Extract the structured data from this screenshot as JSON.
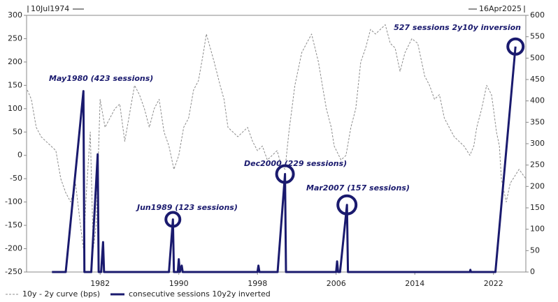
{
  "chart_data": {
    "type": "line",
    "start_label": "10Jul1974",
    "end_label": "16Apr2025",
    "xlim": [
      1974.52,
      2025.29
    ],
    "xticks": [
      1982,
      1990,
      1998,
      2006,
      2014,
      2022
    ],
    "ylim": [
      -250,
      300
    ],
    "yticks": [
      -250,
      -200,
      -150,
      -100,
      -50,
      0,
      50,
      100,
      150,
      200,
      250,
      300
    ],
    "y2lim": [
      0,
      600
    ],
    "y2ticks": [
      0,
      50,
      100,
      150,
      200,
      250,
      300,
      350,
      400,
      450,
      500,
      550,
      600
    ],
    "series": [
      {
        "name": "10y - 2y curve (bps)",
        "color": "#8c8c8c",
        "dashed": true,
        "x": [
          1974.6,
          1975,
          1975.5,
          1976,
          1976.5,
          1977,
          1977.5,
          1978,
          1978.5,
          1979,
          1979.5,
          1980,
          1980.3,
          1980.6,
          1981,
          1981.3,
          1981.6,
          1982,
          1982.5,
          1983,
          1983.5,
          1984,
          1984.5,
          1985,
          1985.5,
          1986,
          1986.5,
          1987,
          1987.5,
          1988,
          1988.5,
          1989,
          1989.5,
          1990,
          1990.5,
          1991,
          1991.5,
          1992,
          1992.5,
          1992.8,
          1993.2,
          1993.6,
          1994.2,
          1994.6,
          1995,
          1995.5,
          1996,
          1996.5,
          1997,
          1997.5,
          1998,
          1998.5,
          1999,
          1999.5,
          2000,
          2000.4,
          2000.8,
          2001.2,
          2001.8,
          2002.5,
          2003,
          2003.5,
          2004.2,
          2004.6,
          2005,
          2005.5,
          2005.8,
          2006.5,
          2007,
          2007.5,
          2008,
          2008.5,
          2009,
          2009.5,
          2010,
          2010.5,
          2011,
          2011.5,
          2012,
          2012.5,
          2013,
          2013.7,
          2014.3,
          2015,
          2015.5,
          2016,
          2016.5,
          2017,
          2017.5,
          2018,
          2018.5,
          2019,
          2019.6,
          2020,
          2020.3,
          2020.8,
          2021.3,
          2021.8,
          2022,
          2022.3,
          2022.6,
          2022.8,
          2023.3,
          2023.7,
          2024,
          2024.6,
          2025.29
        ],
        "values": [
          140,
          120,
          60,
          40,
          30,
          20,
          10,
          -50,
          -80,
          -100,
          -60,
          -150,
          -200,
          -80,
          50,
          -200,
          -150,
          120,
          60,
          80,
          100,
          110,
          30,
          90,
          150,
          130,
          100,
          60,
          100,
          120,
          50,
          20,
          -30,
          0,
          60,
          80,
          140,
          160,
          220,
          260,
          230,
          200,
          150,
          120,
          60,
          50,
          40,
          50,
          60,
          30,
          10,
          20,
          -10,
          0,
          10,
          -20,
          -30,
          50,
          150,
          220,
          240,
          260,
          200,
          150,
          100,
          60,
          20,
          -10,
          0,
          60,
          100,
          200,
          230,
          270,
          260,
          270,
          280,
          240,
          230,
          180,
          220,
          250,
          240,
          170,
          150,
          120,
          130,
          80,
          60,
          40,
          30,
          20,
          0,
          20,
          60,
          100,
          150,
          130,
          100,
          50,
          20,
          -50,
          -100,
          -60,
          -50,
          -30,
          -50
        ]
      },
      {
        "name": "consecutive sessions 10y2y inverted",
        "color": "#1a1a6e",
        "axis": "y2",
        "x": [
          1977.1,
          1978.5,
          1980.3,
          1980.4,
          1981.1,
          1981.75,
          1981.85,
          1982.1,
          1982.3,
          1982.4,
          1989.0,
          1989.4,
          1989.5,
          1989.9,
          1990.0,
          1990.1,
          1990.3,
          1990.4,
          1998.0,
          1998.1,
          1998.2,
          2000.05,
          2000.8,
          2000.9,
          2006.0,
          2006.1,
          2006.2,
          2006.4,
          2007.1,
          2007.2,
          2019.6,
          2019.65,
          2019.7,
          2022.2,
          2024.24
        ],
        "values": [
          0,
          0,
          423,
          0,
          0,
          275,
          0,
          0,
          70,
          0,
          0,
          123,
          0,
          0,
          30,
          0,
          15,
          0,
          0,
          15,
          0,
          0,
          229,
          0,
          0,
          25,
          0,
          0,
          157,
          0,
          0,
          5,
          0,
          0,
          527
        ]
      }
    ],
    "annotations": [
      "May1980 (423 sessions)",
      "Jun1989 (123 sessions)",
      "Dec2000 (229 sessions)",
      "Mar2007 (157 sessions)",
      "527 sessions 2y10y inversion"
    ]
  }
}
